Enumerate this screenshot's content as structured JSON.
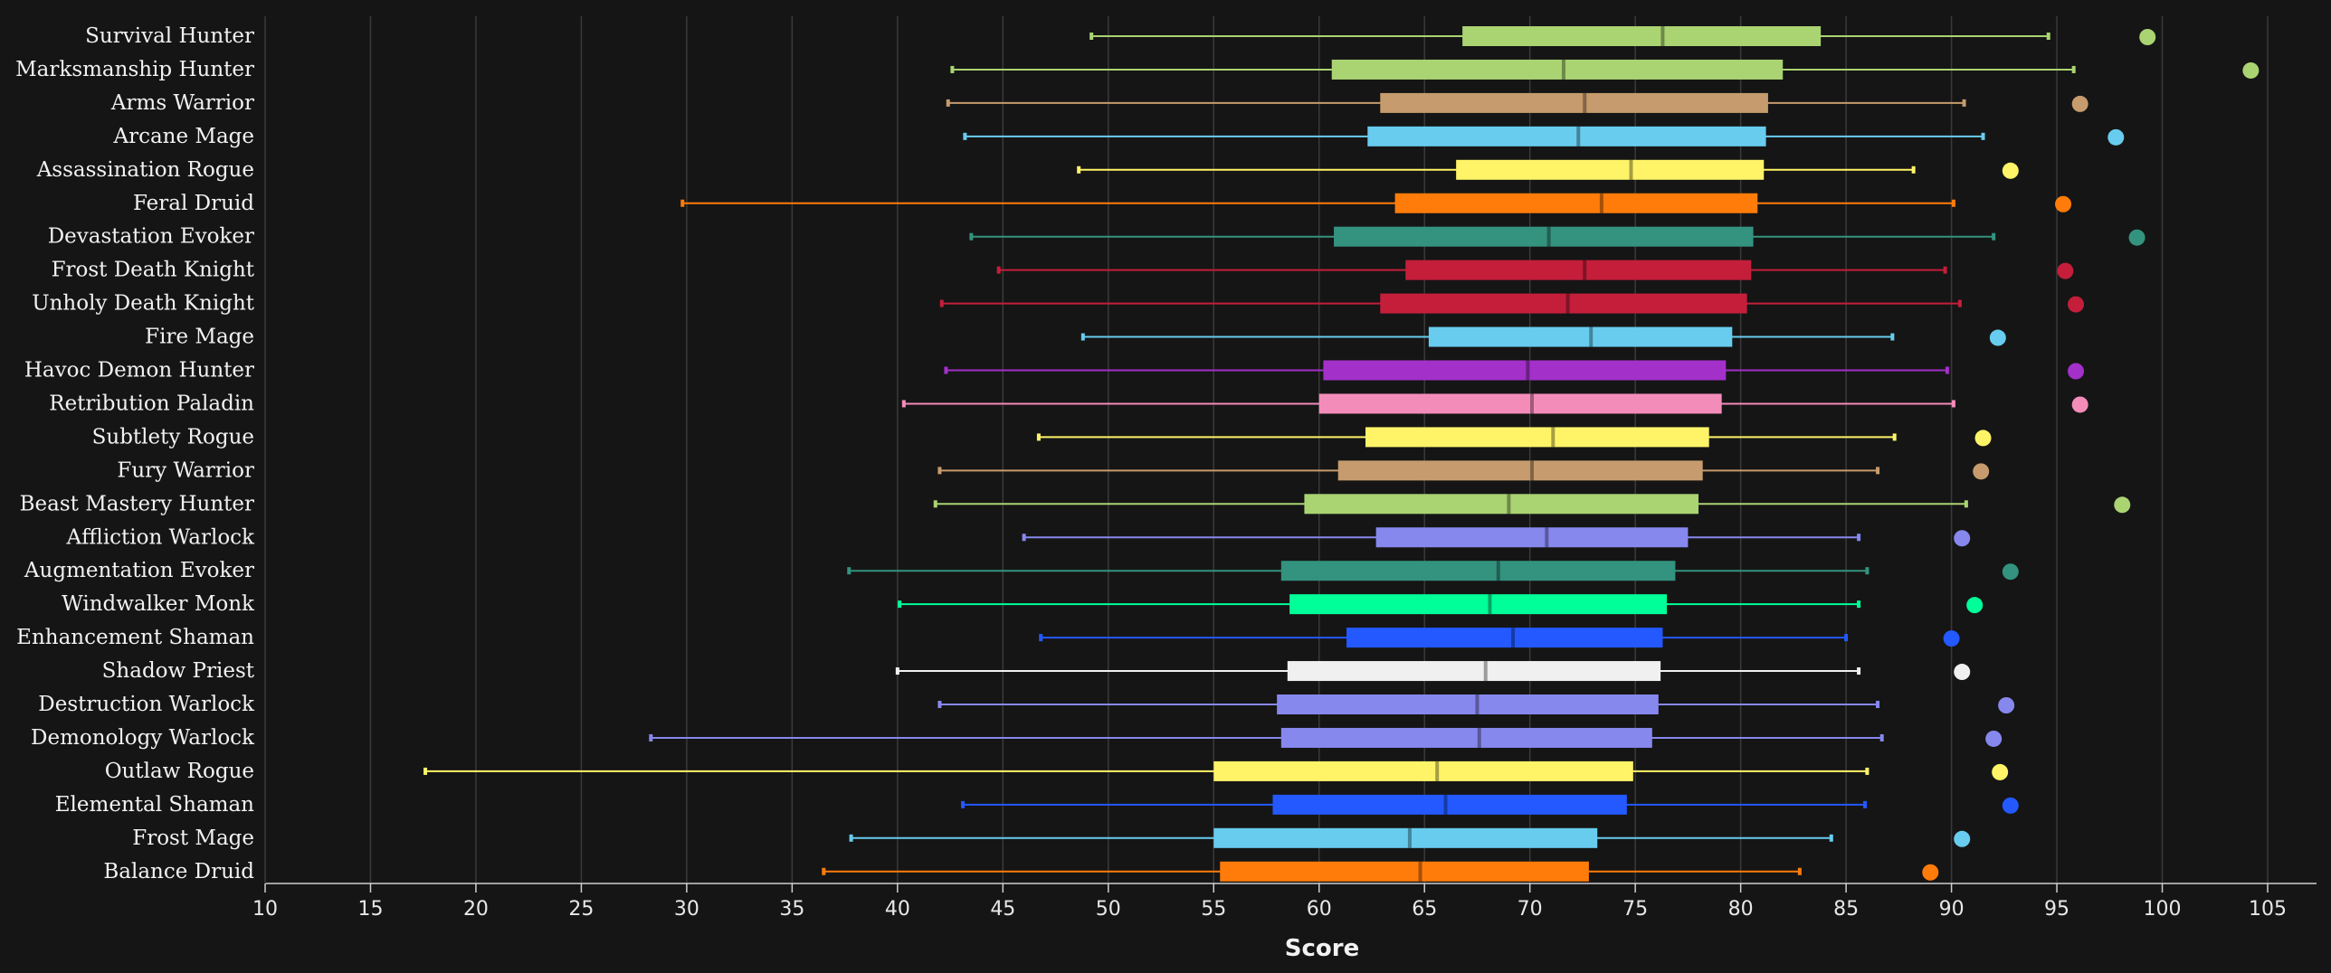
{
  "chart_data": {
    "type": "boxplot",
    "xlabel": "Score",
    "xlim": [
      10,
      107
    ],
    "xticks": [
      10,
      15,
      20,
      25,
      30,
      35,
      40,
      45,
      50,
      55,
      60,
      65,
      70,
      75,
      80,
      85,
      90,
      95,
      100,
      105
    ],
    "grid": "vertical",
    "series": [
      {
        "name": "Survival Hunter",
        "color": "#aad372",
        "min": 49.2,
        "q1": 66.8,
        "median": 76.3,
        "q3": 83.8,
        "max": 94.6,
        "max_point": 99.3
      },
      {
        "name": "Marksmanship Hunter",
        "color": "#aad372",
        "min": 42.6,
        "q1": 60.6,
        "median": 71.6,
        "q3": 82.0,
        "max": 95.8,
        "max_point": 104.2
      },
      {
        "name": "Arms Warrior",
        "color": "#c69b6d",
        "min": 42.4,
        "q1": 62.9,
        "median": 72.6,
        "q3": 81.3,
        "max": 90.6,
        "max_point": 96.1
      },
      {
        "name": "Arcane Mage",
        "color": "#68ccef",
        "min": 43.2,
        "q1": 62.3,
        "median": 72.3,
        "q3": 81.2,
        "max": 91.5,
        "max_point": 97.8
      },
      {
        "name": "Assassination Rogue",
        "color": "#fff468",
        "min": 48.6,
        "q1": 66.5,
        "median": 74.8,
        "q3": 81.1,
        "max": 88.2,
        "max_point": 92.8
      },
      {
        "name": "Feral Druid",
        "color": "#ff7c0a",
        "min": 29.8,
        "q1": 63.6,
        "median": 73.4,
        "q3": 80.8,
        "max": 90.1,
        "max_point": 95.3
      },
      {
        "name": "Devastation Evoker",
        "color": "#33937f",
        "min": 43.5,
        "q1": 60.7,
        "median": 70.9,
        "q3": 80.6,
        "max": 92.0,
        "max_point": 98.8
      },
      {
        "name": "Frost Death Knight",
        "color": "#c41e3b",
        "min": 44.8,
        "q1": 64.1,
        "median": 72.6,
        "q3": 80.5,
        "max": 89.7,
        "max_point": 95.4
      },
      {
        "name": "Unholy Death Knight",
        "color": "#c41e3b",
        "min": 42.1,
        "q1": 62.9,
        "median": 71.8,
        "q3": 80.3,
        "max": 90.4,
        "max_point": 95.9
      },
      {
        "name": "Fire Mage",
        "color": "#68ccef",
        "min": 48.8,
        "q1": 65.2,
        "median": 72.9,
        "q3": 79.6,
        "max": 87.2,
        "max_point": 92.2
      },
      {
        "name": "Havoc Demon Hunter",
        "color": "#a330c9",
        "min": 42.3,
        "q1": 60.2,
        "median": 69.9,
        "q3": 79.3,
        "max": 89.8,
        "max_point": 95.9
      },
      {
        "name": "Retribution Paladin",
        "color": "#f48cba",
        "min": 40.3,
        "q1": 60.0,
        "median": 70.1,
        "q3": 79.1,
        "max": 90.1,
        "max_point": 96.1
      },
      {
        "name": "Subtlety Rogue",
        "color": "#fff468",
        "min": 46.7,
        "q1": 62.2,
        "median": 71.1,
        "q3": 78.5,
        "max": 87.3,
        "max_point": 91.5
      },
      {
        "name": "Fury Warrior",
        "color": "#c69b6d",
        "min": 42.0,
        "q1": 60.9,
        "median": 70.1,
        "q3": 78.2,
        "max": 86.5,
        "max_point": 91.4
      },
      {
        "name": "Beast Mastery Hunter",
        "color": "#aad372",
        "min": 41.8,
        "q1": 59.3,
        "median": 69.0,
        "q3": 78.0,
        "max": 90.7,
        "max_point": 98.1
      },
      {
        "name": "Affliction Warlock",
        "color": "#8788ee",
        "min": 46.0,
        "q1": 62.7,
        "median": 70.8,
        "q3": 77.5,
        "max": 85.6,
        "max_point": 90.5
      },
      {
        "name": "Augmentation Evoker",
        "color": "#33937f",
        "min": 37.7,
        "q1": 58.2,
        "median": 68.5,
        "q3": 76.9,
        "max": 86.0,
        "max_point": 92.8
      },
      {
        "name": "Windwalker Monk",
        "color": "#00ff98",
        "min": 40.1,
        "q1": 58.6,
        "median": 68.1,
        "q3": 76.5,
        "max": 85.6,
        "max_point": 91.1
      },
      {
        "name": "Enhancement Shaman",
        "color": "#2359ff",
        "min": 46.8,
        "q1": 61.3,
        "median": 69.2,
        "q3": 76.3,
        "max": 85.0,
        "max_point": 90.0
      },
      {
        "name": "Shadow Priest",
        "color": "#f0f0f0",
        "min": 40.0,
        "q1": 58.5,
        "median": 67.9,
        "q3": 76.2,
        "max": 85.6,
        "max_point": 90.5
      },
      {
        "name": "Destruction Warlock",
        "color": "#8788ee",
        "min": 42.0,
        "q1": 58.0,
        "median": 67.5,
        "q3": 76.1,
        "max": 86.5,
        "max_point": 92.6
      },
      {
        "name": "Demonology Warlock",
        "color": "#8788ee",
        "min": 28.3,
        "q1": 58.2,
        "median": 67.6,
        "q3": 75.8,
        "max": 86.7,
        "max_point": 92.0
      },
      {
        "name": "Outlaw Rogue",
        "color": "#fff468",
        "min": 17.6,
        "q1": 55.0,
        "median": 65.6,
        "q3": 74.9,
        "max": 86.0,
        "max_point": 92.3
      },
      {
        "name": "Elemental Shaman",
        "color": "#2359ff",
        "min": 43.1,
        "q1": 57.8,
        "median": 66.0,
        "q3": 74.6,
        "max": 85.9,
        "max_point": 92.8
      },
      {
        "name": "Frost Mage",
        "color": "#68ccef",
        "min": 37.8,
        "q1": 55.0,
        "median": 64.3,
        "q3": 73.2,
        "max": 84.3,
        "max_point": 90.5
      },
      {
        "name": "Balance Druid",
        "color": "#ff7c0a",
        "min": 36.5,
        "q1": 55.3,
        "median": 64.8,
        "q3": 72.8,
        "max": 82.8,
        "max_point": 89.0
      }
    ]
  }
}
